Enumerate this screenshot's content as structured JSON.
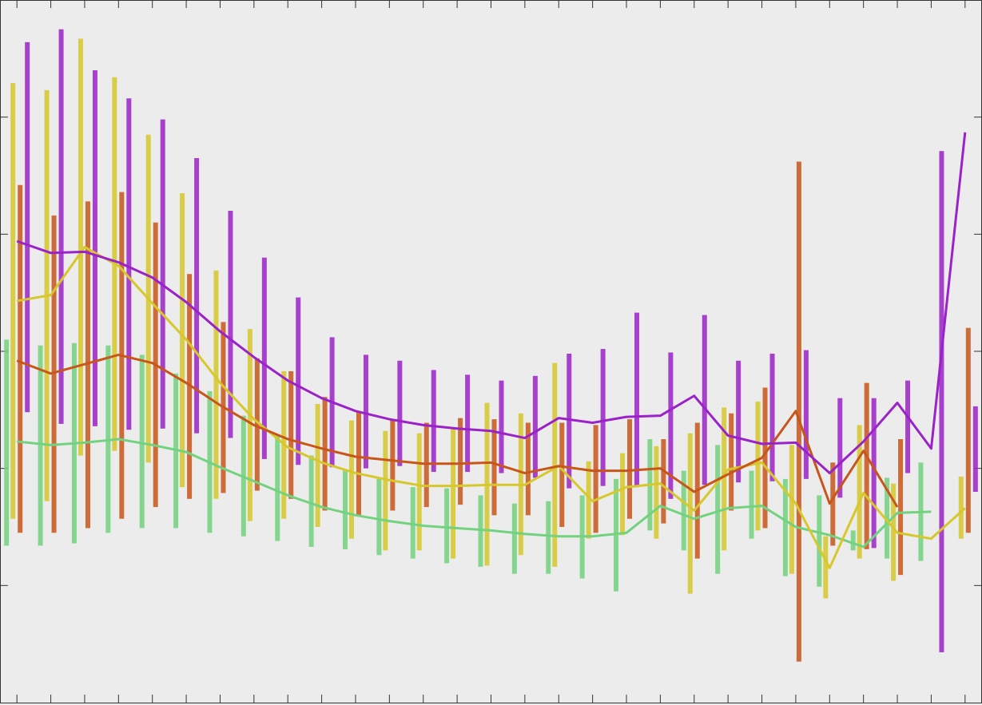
{
  "chart_data": {
    "type": "line",
    "x": [
      1,
      2,
      3,
      4,
      5,
      6,
      7,
      8,
      9,
      10,
      11,
      12,
      13,
      14,
      15,
      16,
      17,
      18,
      19,
      20,
      21,
      22,
      23,
      24,
      25,
      26,
      27,
      28,
      29
    ],
    "xlim": [
      0.5,
      29.5
    ],
    "xticks": [
      1,
      2,
      3,
      4,
      5,
      6,
      7,
      8,
      9,
      10,
      11,
      12,
      13,
      14,
      15,
      16,
      17,
      18,
      19,
      20,
      21,
      22,
      23,
      24,
      25,
      26,
      27,
      28,
      29
    ],
    "ylim": [
      0,
      6
    ],
    "yticks": [
      1,
      2,
      3,
      4,
      5
    ],
    "series": [
      {
        "color": "#72d27f",
        "values": [
          2.23,
          2.2,
          2.22,
          2.25,
          2.2,
          2.14,
          2.01,
          1.89,
          1.77,
          1.67,
          1.6,
          1.55,
          1.51,
          1.49,
          1.47,
          1.44,
          1.42,
          1.42,
          1.45,
          1.68,
          1.57,
          1.66,
          1.68,
          1.5,
          1.43,
          1.33,
          1.62,
          1.63,
          null
        ],
        "low": [
          1.34,
          1.34,
          1.36,
          1.45,
          1.49,
          1.49,
          1.45,
          1.42,
          1.38,
          1.33,
          1.31,
          1.26,
          1.23,
          1.19,
          1.16,
          1.1,
          1.1,
          1.06,
          0.95,
          1.47,
          1.3,
          1.1,
          1.4,
          1.08,
          0.99,
          1.3,
          1.23,
          1.21,
          null
        ],
        "high": [
          3.1,
          3.05,
          3.07,
          3.05,
          2.97,
          2.81,
          2.66,
          2.45,
          2.28,
          2.11,
          1.98,
          1.91,
          1.84,
          1.83,
          1.77,
          1.7,
          1.72,
          1.77,
          1.91,
          2.25,
          1.98,
          2.2,
          1.98,
          1.91,
          1.77,
          1.47,
          1.92,
          2.05,
          null
        ]
      },
      {
        "color": "#d6c82c",
        "values": [
          3.43,
          3.48,
          3.89,
          3.73,
          3.41,
          3.1,
          2.73,
          2.42,
          2.18,
          2.05,
          1.96,
          1.9,
          1.85,
          1.85,
          1.86,
          1.86,
          2.02,
          1.72,
          1.84,
          1.87,
          1.64,
          1.99,
          2.05,
          1.7,
          1.15,
          1.79,
          1.45,
          1.4,
          1.66
        ],
        "low": [
          1.57,
          1.72,
          2.11,
          2.15,
          2.05,
          1.84,
          1.74,
          1.55,
          1.57,
          1.5,
          1.4,
          1.3,
          1.3,
          1.23,
          1.17,
          1.26,
          1.16,
          1.4,
          1.43,
          1.4,
          0.93,
          1.3,
          1.47,
          1.1,
          0.89,
          1.23,
          1.04,
          null,
          1.4
        ],
        "high": [
          5.29,
          5.23,
          5.67,
          5.34,
          4.85,
          4.35,
          3.69,
          3.19,
          2.83,
          2.55,
          2.41,
          2.32,
          2.3,
          2.34,
          2.56,
          2.47,
          2.9,
          2.06,
          2.13,
          2.19,
          2.3,
          2.52,
          2.57,
          2.2,
          1.42,
          2.37,
          1.87,
          null,
          1.93
        ]
      },
      {
        "color": "#c8561a",
        "values": [
          2.92,
          2.81,
          2.89,
          2.97,
          2.9,
          2.73,
          2.54,
          2.37,
          2.25,
          2.17,
          2.1,
          2.07,
          2.04,
          2.04,
          2.05,
          1.96,
          2.02,
          1.98,
          1.98,
          2.0,
          1.8,
          1.95,
          2.09,
          2.49,
          1.7,
          2.15,
          1.67,
          null,
          null
        ],
        "low": [
          1.45,
          1.45,
          1.49,
          1.57,
          1.67,
          1.74,
          1.79,
          1.81,
          1.74,
          1.64,
          1.6,
          1.64,
          1.67,
          1.69,
          1.6,
          1.6,
          1.5,
          1.45,
          1.57,
          1.53,
          1.23,
          1.64,
          1.49,
          0.35,
          1.34,
          1.31,
          1.09,
          null,
          1.45
        ],
        "high": [
          4.42,
          4.16,
          4.28,
          4.36,
          4.1,
          3.66,
          3.25,
          2.94,
          2.83,
          2.61,
          2.49,
          2.42,
          2.39,
          2.43,
          2.42,
          2.39,
          2.39,
          2.37,
          2.42,
          2.25,
          2.39,
          2.47,
          2.69,
          4.62,
          2.05,
          2.73,
          2.25,
          null,
          3.2
        ]
      },
      {
        "color": "#9a22c8",
        "values": [
          3.94,
          3.84,
          3.85,
          3.76,
          3.63,
          3.42,
          3.17,
          2.95,
          2.75,
          2.6,
          2.49,
          2.42,
          2.37,
          2.34,
          2.32,
          2.26,
          2.43,
          2.39,
          2.44,
          2.45,
          2.62,
          2.28,
          2.21,
          2.22,
          1.96,
          2.23,
          2.56,
          2.17,
          4.87
        ],
        "low": [
          2.48,
          2.38,
          2.36,
          2.33,
          2.34,
          2.3,
          2.26,
          2.08,
          2.03,
          2.01,
          2.0,
          2.02,
          1.97,
          1.97,
          1.96,
          1.92,
          1.83,
          1.85,
          1.84,
          1.74,
          1.86,
          1.88,
          1.89,
          1.91,
          1.75,
          1.32,
          1.96,
          0.43,
          1.8
        ],
        "high": [
          5.64,
          5.75,
          5.4,
          5.16,
          4.98,
          4.65,
          4.2,
          3.8,
          3.46,
          3.12,
          2.97,
          2.92,
          2.84,
          2.8,
          2.75,
          2.79,
          2.98,
          3.02,
          3.33,
          2.99,
          3.31,
          2.92,
          2.98,
          3.01,
          2.6,
          2.6,
          2.75,
          4.71,
          2.53
        ]
      }
    ]
  }
}
